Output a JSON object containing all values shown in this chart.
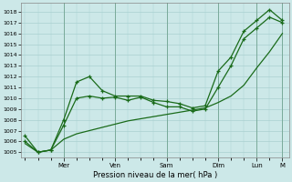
{
  "xlabel": "Pression niveau de la mer( hPa )",
  "ylim": [
    1004.5,
    1018.8
  ],
  "yticks": [
    1005,
    1006,
    1007,
    1008,
    1009,
    1010,
    1011,
    1012,
    1013,
    1014,
    1015,
    1016,
    1017,
    1018
  ],
  "background_color": "#cce8e8",
  "grid_color": "#aad0d0",
  "line_color": "#1a6b1a",
  "line1_x": [
    0,
    1,
    2,
    3,
    4,
    5,
    6,
    7,
    8,
    9,
    10,
    11,
    12,
    13,
    14,
    15,
    16,
    17,
    18,
    19,
    20
  ],
  "line1_y": [
    1006.5,
    1005.0,
    1005.2,
    1008.0,
    1011.5,
    1012.0,
    1010.7,
    1010.2,
    1010.2,
    1010.2,
    1009.8,
    1009.7,
    1009.5,
    1009.1,
    1009.3,
    1012.5,
    1013.8,
    1016.2,
    1017.2,
    1018.2,
    1017.2
  ],
  "line2_x": [
    0,
    1,
    2,
    3,
    4,
    5,
    6,
    7,
    8,
    9,
    10,
    11,
    12,
    13,
    14,
    15,
    16,
    17,
    18,
    19,
    20
  ],
  "line2_y": [
    1006.0,
    1005.0,
    1005.2,
    1007.5,
    1010.0,
    1010.2,
    1010.0,
    1010.1,
    1009.8,
    1010.1,
    1009.6,
    1009.2,
    1009.2,
    1008.8,
    1009.0,
    1011.0,
    1013.0,
    1015.5,
    1016.5,
    1017.5,
    1017.0
  ],
  "line3_x": [
    0,
    1,
    2,
    3,
    4,
    5,
    6,
    7,
    8,
    9,
    10,
    11,
    12,
    13,
    14,
    15,
    16,
    17,
    18,
    19,
    20
  ],
  "line3_y": [
    1005.8,
    1005.0,
    1005.2,
    1006.2,
    1006.7,
    1007.0,
    1007.3,
    1007.6,
    1007.9,
    1008.1,
    1008.3,
    1008.5,
    1008.7,
    1008.9,
    1009.1,
    1009.6,
    1010.2,
    1011.2,
    1012.8,
    1014.3,
    1016.0
  ],
  "x_tick_positions": [
    3,
    7,
    11,
    15,
    18,
    20
  ],
  "x_tick_labels": [
    "Mer",
    "Ven",
    "Sam",
    "Dim",
    "Lun",
    "M"
  ],
  "xlim": [
    -0.3,
    20.5
  ],
  "figsize": [
    3.2,
    2.0
  ],
  "dpi": 100
}
